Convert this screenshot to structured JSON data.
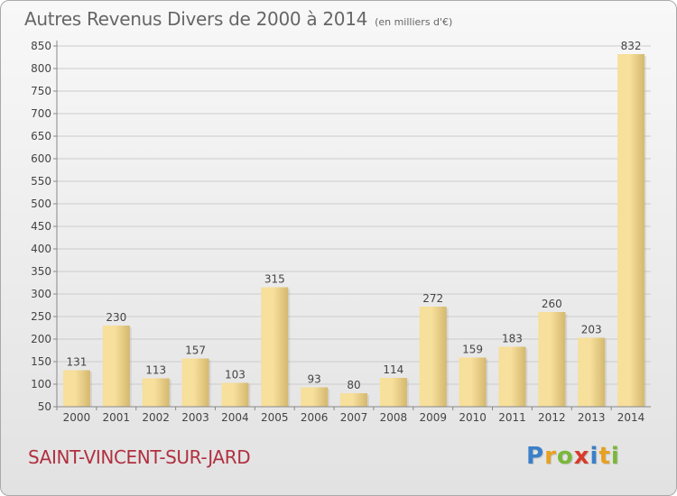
{
  "header": {
    "title": "Autres Revenus Divers de 2000 à 2014",
    "subtitle": "(en milliers d'€)"
  },
  "footer": {
    "town": "SAINT-VINCENT-SUR-JARD",
    "logo": "Proxiti"
  },
  "colors": {
    "bar_light": "#f7df9c",
    "bar_dark": "#d4b86e",
    "grid": "#cccccc",
    "town": "#b03040"
  },
  "chart_data": {
    "type": "bar",
    "title": "Autres Revenus Divers de 2000 à 2014",
    "subtitle": "(en milliers d'€)",
    "categories": [
      "2000",
      "2001",
      "2002",
      "2003",
      "2004",
      "2005",
      "2006",
      "2007",
      "2008",
      "2009",
      "2010",
      "2011",
      "2012",
      "2013",
      "2014"
    ],
    "values": [
      131,
      230,
      113,
      157,
      103,
      315,
      93,
      80,
      114,
      272,
      159,
      183,
      260,
      203,
      832
    ],
    "ylim": [
      50,
      850
    ],
    "yticks": [
      50,
      100,
      150,
      200,
      250,
      300,
      350,
      400,
      450,
      500,
      550,
      600,
      650,
      700,
      750,
      800,
      850
    ],
    "grid": true,
    "data_labels": true
  }
}
